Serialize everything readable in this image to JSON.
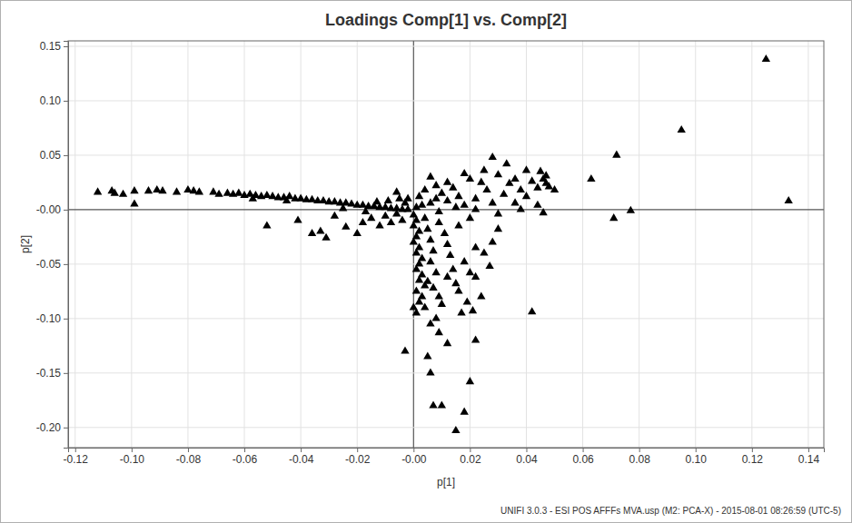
{
  "chart_data": {
    "type": "scatter",
    "title": "Loadings Comp[1] vs. Comp[2]",
    "x_label": "p[1]",
    "y_label": "p[2]",
    "footnote": "UNIFI 3.0.3 - ESI POS AFFFs MVA.usp (M2: PCA-X) - 2015-08-01 08:26:59 (UTC-5)",
    "color": "#000000",
    "marker": "triangle",
    "grid": true,
    "xlim": [
      -0.1225,
      0.1455
    ],
    "ylim": [
      -0.2185,
      0.155
    ],
    "xticks": [
      -0.12,
      {
        "value": -0.1,
        "label": "-0.10"
      },
      -0.08,
      -0.06,
      -0.04,
      -0.02,
      {
        "value": 0,
        "label": "-0.00"
      },
      0.02,
      0.04,
      0.06,
      0.08,
      {
        "value": 0.1,
        "label": "0.10"
      },
      0.12,
      0.14
    ],
    "yticks": [
      0.15,
      {
        "value": 0.1,
        "label": "0.10"
      },
      0.05,
      {
        "value": 0,
        "label": "-0.00"
      },
      -0.05,
      {
        "value": -0.1,
        "label": "-0.10"
      },
      -0.15,
      {
        "value": -0.2,
        "label": "-0.20"
      }
    ],
    "x": [
      -0.112,
      -0.107,
      -0.106,
      -0.103,
      -0.099,
      -0.099,
      -0.094,
      -0.091,
      -0.089,
      -0.084,
      -0.08,
      -0.078,
      -0.076,
      -0.071,
      -0.069,
      -0.066,
      -0.064,
      -0.062,
      -0.06,
      -0.058,
      -0.056,
      -0.054,
      -0.052,
      -0.05,
      -0.048,
      -0.046,
      -0.044,
      -0.042,
      -0.04,
      -0.038,
      -0.036,
      -0.034,
      -0.032,
      -0.03,
      -0.028,
      -0.026,
      -0.024,
      -0.022,
      -0.02,
      -0.018,
      -0.016,
      -0.014,
      -0.012,
      -0.01,
      -0.008,
      -0.006,
      -0.004,
      -0.002,
      -0.052,
      -0.041,
      -0.036,
      -0.033,
      -0.031,
      -0.028,
      -0.024,
      -0.02,
      -0.018,
      -0.015,
      -0.012,
      -0.01,
      -0.008,
      -0.006,
      -0.004,
      -0.003,
      -0.005,
      -0.009,
      -0.013,
      -0.006,
      -0.002,
      -0.045,
      -0.057,
      -0.025,
      -0.017,
      0.002,
      0.004,
      0.006,
      0.008,
      0.01,
      0.012,
      0.014,
      0.016,
      0.018,
      0.02,
      0.022,
      0.024,
      0.026,
      0.028,
      0.028,
      0.03,
      0.032,
      0.033,
      0.034,
      0.036,
      0.036,
      0.038,
      0.04,
      0.04,
      0.042,
      0.044,
      0.045,
      0.046,
      0.047,
      0.047,
      0.048,
      0.05,
      0.046,
      0.044,
      0.038,
      0.03,
      0.025,
      0.018,
      0.012,
      0.008,
      0.006,
      0.015,
      0.003,
      0.001,
      0.009,
      0.022,
      0.063,
      0.072,
      0.071,
      0.077,
      0.095,
      0.125,
      0.133,
      0.0,
      0.001,
      0.0,
      0.002,
      0.001,
      0.0,
      0.002,
      0.001,
      0.003,
      0.002,
      0.001,
      0.003,
      0.002,
      0.004,
      0.001,
      0.003,
      0.002,
      0.0,
      0.001,
      0.004,
      0.005,
      0.006,
      0.007,
      0.006,
      0.008,
      0.005,
      0.007,
      0.009,
      0.01,
      0.004,
      0.009,
      0.011,
      0.012,
      0.013,
      0.014,
      0.012,
      0.015,
      0.016,
      0.018,
      0.02,
      0.022,
      0.024,
      0.019,
      0.017,
      0.025,
      0.027,
      0.028,
      0.022,
      0.03,
      0.016,
      0.02,
      0.008,
      0.006,
      -0.003,
      0.005,
      0.006,
      0.009,
      0.012,
      0.021,
      0.022,
      0.042,
      0.02,
      0.007,
      0.01,
      0.018,
      0.015
    ],
    "values": [
      0.016,
      0.017,
      0.015,
      0.014,
      0.017,
      0.005,
      0.017,
      0.018,
      0.017,
      0.016,
      0.018,
      0.017,
      0.016,
      0.016,
      0.014,
      0.015,
      0.014,
      0.015,
      0.013,
      0.014,
      0.013,
      0.012,
      0.013,
      0.012,
      0.011,
      0.011,
      0.012,
      0.01,
      0.01,
      0.009,
      0.009,
      0.008,
      0.008,
      0.007,
      0.007,
      0.006,
      0.006,
      0.005,
      0.004,
      0.004,
      0.003,
      0.003,
      0.002,
      0.002,
      0.001,
      0.001,
      0.0,
      0.0,
      -0.015,
      -0.01,
      -0.022,
      -0.02,
      -0.026,
      -0.006,
      -0.016,
      -0.022,
      -0.012,
      -0.008,
      -0.015,
      -0.006,
      -0.012,
      -0.004,
      -0.01,
      0.006,
      0.01,
      0.008,
      0.007,
      0.016,
      0.01,
      0.008,
      0.01,
      0.001,
      -0.002,
      0.012,
      0.018,
      0.006,
      0.01,
      0.015,
      0.008,
      0.02,
      0.012,
      0.004,
      0.028,
      0.01,
      0.025,
      0.018,
      0.048,
      0.006,
      0.032,
      0.014,
      0.042,
      0.024,
      0.028,
      0.006,
      0.018,
      0.036,
      0.012,
      0.026,
      0.02,
      0.035,
      0.028,
      0.031,
      0.024,
      0.021,
      0.018,
      -0.003,
      0.004,
      0.0,
      -0.004,
      0.036,
      0.033,
      0.025,
      0.022,
      0.03,
      0.002,
      0.004,
      0.002,
      -0.002,
      0.0,
      0.028,
      0.05,
      -0.008,
      -0.001,
      0.073,
      0.138,
      0.008,
      -0.005,
      -0.01,
      -0.015,
      -0.02,
      -0.025,
      -0.03,
      -0.035,
      -0.04,
      -0.045,
      -0.05,
      -0.055,
      -0.06,
      -0.065,
      -0.07,
      -0.075,
      -0.08,
      -0.085,
      -0.09,
      -0.095,
      -0.008,
      -0.018,
      -0.028,
      -0.038,
      -0.048,
      -0.058,
      -0.066,
      -0.072,
      -0.08,
      -0.087,
      -0.09,
      -0.012,
      -0.022,
      -0.032,
      -0.042,
      -0.055,
      -0.062,
      -0.068,
      -0.075,
      -0.048,
      -0.058,
      -0.062,
      -0.08,
      -0.085,
      -0.095,
      -0.04,
      -0.052,
      -0.03,
      -0.035,
      -0.018,
      -0.015,
      -0.008,
      -0.1,
      -0.105,
      -0.13,
      -0.135,
      -0.15,
      -0.113,
      -0.123,
      -0.093,
      -0.12,
      -0.094,
      -0.158,
      -0.18,
      -0.18,
      -0.186,
      -0.203
    ]
  }
}
